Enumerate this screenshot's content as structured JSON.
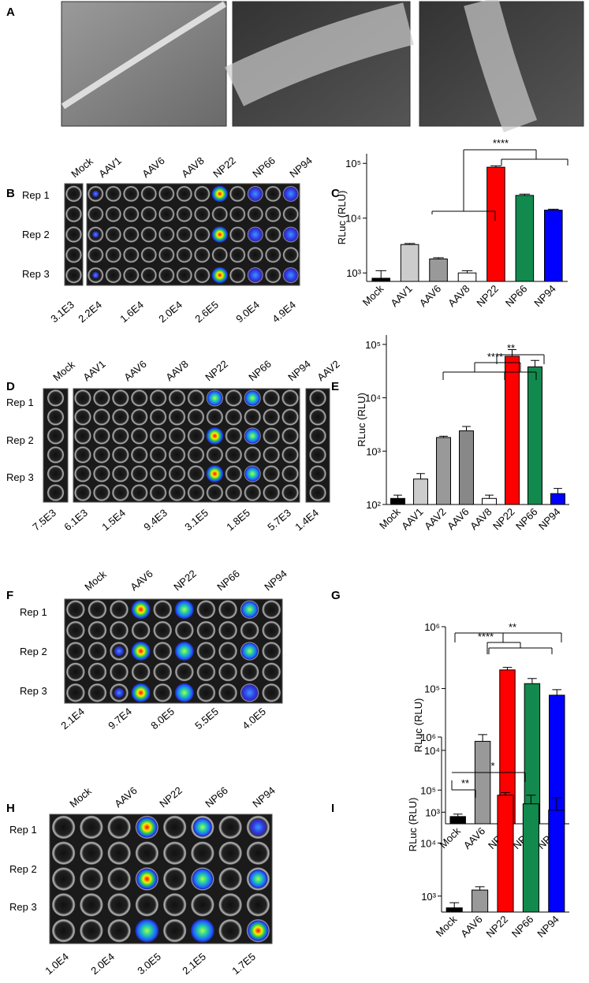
{
  "panel_labels": [
    "A",
    "B",
    "C",
    "D",
    "E",
    "F",
    "G",
    "H",
    "I"
  ],
  "plates": [
    {
      "columns": [
        "Mock",
        "AAV1",
        "AAV6",
        "AAV8",
        "NP22",
        "NP66",
        "NP94"
      ],
      "rows": [
        "Rep 1",
        "Rep 2",
        "Rep 3"
      ],
      "totals": [
        "3.1E3",
        "2.2E4",
        "1.6E4",
        "2.0E4",
        "2.6E5",
        "9.0E4",
        "4.9E4"
      ]
    },
    {
      "columns": [
        "Mock",
        "AAV1",
        "AAV6",
        "AAV8",
        "NP22",
        "NP66",
        "NP94",
        "AAV2"
      ],
      "rows": [
        "Rep 1",
        "Rep 2",
        "Rep 3"
      ],
      "totals": [
        "7.5E3",
        "6.1E3",
        "1.5E4",
        "9.4E3",
        "3.1E5",
        "1.8E5",
        "5.7E3",
        "1.4E4"
      ]
    },
    {
      "columns": [
        "Mock",
        "AAV6",
        "NP22",
        "NP66",
        "NP94"
      ],
      "rows": [
        "Rep 1",
        "Rep 2",
        "Rep 3"
      ],
      "totals": [
        "2.1E4",
        "9.7E4",
        "8.0E5",
        "5.5E5",
        "4.0E5"
      ]
    },
    {
      "columns": [
        "Mock",
        "AAV6",
        "NP22",
        "NP66",
        "NP94"
      ],
      "rows": [
        "Rep 1",
        "Rep 2",
        "Rep 3"
      ],
      "totals": [
        "1.0E4",
        "2.0E4",
        "3.0E5",
        "2.1E5",
        "1.7E5"
      ]
    }
  ],
  "chart_data": [
    {
      "type": "bar",
      "y_label": "RLuc (RLU)",
      "log_scale": true,
      "categories": [
        "Mock",
        "AAV1",
        "AAV6",
        "AAV8",
        "NP22",
        "NP66",
        "NP94"
      ],
      "values": [
        800,
        3300,
        1800,
        1000,
        85000,
        26000,
        14000
      ],
      "errors": [
        300,
        150,
        100,
        100,
        5000,
        1500,
        600
      ],
      "colors": [
        "#000000",
        "#cccccc",
        "#999999",
        "#ffffff",
        "#ff0000",
        "#128a4e",
        "#0000ff"
      ],
      "ylim": [
        700,
        150000
      ],
      "yticks": [
        {
          "value": 1000,
          "label": "10³"
        },
        {
          "value": 10000,
          "label": "10⁴"
        },
        {
          "value": 100000,
          "label": "10⁵"
        }
      ],
      "annotations": [
        "****"
      ]
    },
    {
      "type": "bar",
      "y_label": "RLuc (RLU)",
      "log_scale": true,
      "categories": [
        "Mock",
        "AAV1",
        "AAV2",
        "AAV6",
        "AAV8",
        "NP22",
        "NP66",
        "NP94"
      ],
      "values": [
        130,
        300,
        1800,
        2400,
        130,
        60000,
        38000,
        160
      ],
      "errors": [
        20,
        80,
        100,
        500,
        20,
        20000,
        12000,
        40
      ],
      "colors": [
        "#000000",
        "#cccccc",
        "#999999",
        "#888888",
        "#ffffff",
        "#ff0000",
        "#128a4e",
        "#0000ff"
      ],
      "ylim": [
        100,
        150000
      ],
      "yticks": [
        {
          "value": 100,
          "label": "10²"
        },
        {
          "value": 1000,
          "label": "10³"
        },
        {
          "value": 10000,
          "label": "10⁴"
        },
        {
          "value": 100000,
          "label": "10⁵"
        }
      ],
      "annotations": [
        "**",
        "****"
      ]
    },
    {
      "type": "bar",
      "y_label": "RLuc (RLU)",
      "log_scale": true,
      "categories": [
        "Mock",
        "AAV6",
        "NP22",
        "NP66",
        "NP94"
      ],
      "values": [
        850,
        14000,
        200000,
        120000,
        78000
      ],
      "errors": [
        80,
        4000,
        20000,
        25000,
        18000
      ],
      "colors": [
        "#000000",
        "#999999",
        "#ff0000",
        "#128a4e",
        "#0000ff"
      ],
      "ylim": [
        650,
        1000000
      ],
      "yticks": [
        {
          "value": 1000,
          "label": "10³"
        },
        {
          "value": 10000,
          "label": "10⁴"
        },
        {
          "value": 100000,
          "label": "10⁵"
        },
        {
          "value": 1000000,
          "label": "10⁶"
        }
      ],
      "annotations": [
        "****",
        "**"
      ]
    },
    {
      "type": "bar",
      "y_label": "RLuc (RLU)",
      "log_scale": true,
      "categories": [
        "Mock",
        "AAV6",
        "NP22",
        "NP66",
        "NP94"
      ],
      "values": [
        600,
        1300,
        80000,
        55000,
        42000
      ],
      "errors": [
        150,
        200,
        10000,
        25000,
        30000
      ],
      "colors": [
        "#000000",
        "#999999",
        "#ff0000",
        "#128a4e",
        "#0000ff"
      ],
      "ylim": [
        500,
        1000000
      ],
      "yticks": [
        {
          "value": 1000,
          "label": "10³"
        },
        {
          "value": 10000,
          "label": "10⁴"
        },
        {
          "value": 100000,
          "label": "10⁵"
        },
        {
          "value": 1000000,
          "label": "10⁶"
        }
      ],
      "annotations": [
        "**",
        "*"
      ]
    }
  ]
}
